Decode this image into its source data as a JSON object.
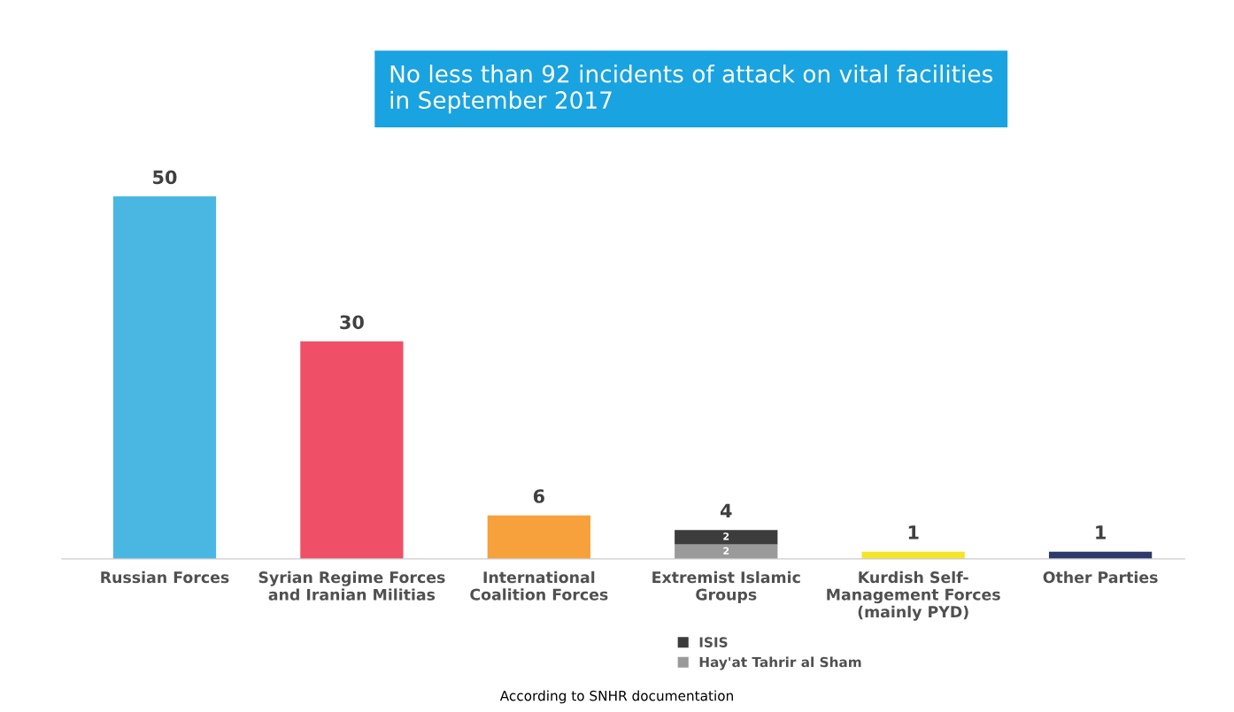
{
  "chart_data": {
    "type": "bar",
    "title": "No less than 92 incidents of attack on vital facilities\nin September 2017",
    "categories": [
      "Russian Forces",
      "Syrian Regime Forces\nand Iranian Militias",
      "International\nCoalition Forces",
      "Extremist Islamic\nGroups",
      "Kurdish Self-\nManagement Forces\n(mainly PYD)",
      "Other Parties"
    ],
    "stacked": true,
    "series": [
      {
        "colors": [
          "#4ab7e3",
          "#ef5068",
          "#f6a13c",
          "#ffffff",
          "#f5e42c",
          "#2e3a6b"
        ],
        "values": [
          50,
          30,
          6,
          null,
          1,
          1
        ],
        "value_labels": [
          "50",
          "30",
          "6",
          null,
          "1",
          "1"
        ]
      },
      {
        "name": "Hay'at Tahrir al Sham",
        "color": "#9a9a9a",
        "values": [
          null,
          null,
          null,
          2,
          null,
          null
        ],
        "value_labels": [
          null,
          null,
          null,
          "2",
          null,
          null
        ]
      },
      {
        "name": "ISIS",
        "color": "#3c3c3c",
        "values": [
          null,
          null,
          null,
          2,
          null,
          null
        ],
        "value_labels": [
          null,
          null,
          null,
          "2",
          null,
          null
        ]
      }
    ],
    "totals": [
      null,
      null,
      null,
      "4",
      null,
      null
    ],
    "legend": "bottom",
    "grid": false,
    "annotations": [
      "According to SNHR documentation"
    ]
  }
}
